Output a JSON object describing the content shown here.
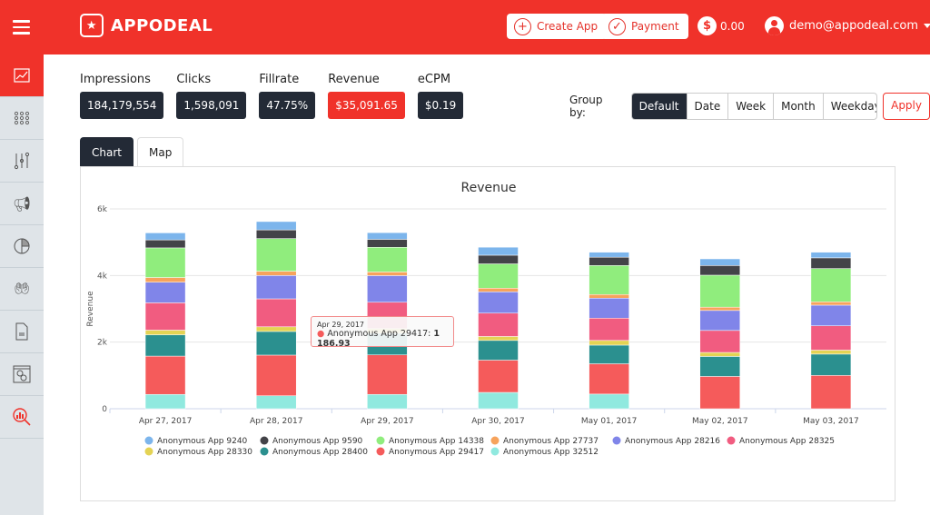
{
  "header": {
    "logo": "APPODEAL",
    "create_app": "Create App",
    "payment": "Payment",
    "balance": "0.00",
    "user": "demo@appodeal.com"
  },
  "sidebar": {
    "items": [
      {
        "icon": "line-chart-icon",
        "active": true
      },
      {
        "icon": "apps-grid-icon"
      },
      {
        "icon": "sliders-icon"
      },
      {
        "icon": "megaphone-icon"
      },
      {
        "icon": "pie-chart-icon"
      },
      {
        "icon": "hand-coins-icon"
      },
      {
        "icon": "document-icon"
      },
      {
        "icon": "settings-window-icon"
      },
      {
        "icon": "search-analytics-icon"
      }
    ]
  },
  "stats": [
    {
      "label": "Impressions",
      "value": "184,179,554"
    },
    {
      "label": "Clicks",
      "value": "1,598,091"
    },
    {
      "label": "Fillrate",
      "value": "47.75%"
    },
    {
      "label": "Revenue",
      "value": "$35,091.65"
    },
    {
      "label": "eCPM",
      "value": "$0.19"
    }
  ],
  "group_by": {
    "label": "Group by:",
    "options": [
      "Default",
      "Date",
      "Week",
      "Month",
      "Weekday"
    ],
    "selected": "Default",
    "apply": "Apply"
  },
  "tabs": [
    {
      "label": "Chart",
      "active": true
    },
    {
      "label": "Map"
    }
  ],
  "colors": {
    "brand": "#f0322a",
    "dark": "#232a36"
  },
  "tooltip": {
    "date": "Apr 29, 2017",
    "series": "Anonymous App 29417",
    "value": "1 186.93"
  },
  "chart_data": {
    "type": "bar",
    "stacked": true,
    "title": "Revenue",
    "ylabel": "Revenue",
    "xlabel": "",
    "ylim": [
      0,
      6000
    ],
    "yticks": [
      "0",
      "2k",
      "4k",
      "6k"
    ],
    "grid": true,
    "legend": "bottom",
    "categories": [
      "Apr 27, 2017",
      "Apr 28, 2017",
      "Apr 29, 2017",
      "Apr 30, 2017",
      "May 01, 2017",
      "May 02, 2017",
      "May 03, 2017"
    ],
    "series": [
      {
        "name": "Anonymous App 32512",
        "color": "#90e9df",
        "values": [
          430,
          390,
          430,
          490,
          440,
          0,
          0
        ]
      },
      {
        "name": "Anonymous App 29417",
        "color": "#f55b5b",
        "values": [
          1150,
          1220,
          1186.93,
          970,
          910,
          970,
          1000
        ]
      },
      {
        "name": "Anonymous App 28400",
        "color": "#2b908f",
        "values": [
          640,
          710,
          650,
          590,
          560,
          600,
          640
        ]
      },
      {
        "name": "Anonymous App 28330",
        "color": "#e4d354",
        "values": [
          140,
          140,
          140,
          120,
          140,
          120,
          120
        ]
      },
      {
        "name": "Anonymous App 28325",
        "color": "#f15c80",
        "values": [
          820,
          840,
          790,
          700,
          670,
          660,
          730
        ]
      },
      {
        "name": "Anonymous App 28216",
        "color": "#8085e9",
        "values": [
          620,
          700,
          800,
          640,
          600,
          600,
          620
        ]
      },
      {
        "name": "Anonymous App 27737",
        "color": "#f7a35c",
        "values": [
          140,
          130,
          110,
          110,
          110,
          100,
          100
        ]
      },
      {
        "name": "Anonymous App 14338",
        "color": "#90ed7d",
        "values": [
          890,
          980,
          740,
          730,
          870,
          960,
          1000
        ]
      },
      {
        "name": "Anonymous App 9590",
        "color": "#434348",
        "values": [
          240,
          260,
          240,
          260,
          250,
          290,
          320
        ]
      },
      {
        "name": "Anonymous App 9240",
        "color": "#7cb5ec",
        "values": [
          210,
          250,
          200,
          240,
          150,
          200,
          170
        ]
      }
    ],
    "legend_order": [
      "Anonymous App 9240",
      "Anonymous App 9590",
      "Anonymous App 14338",
      "Anonymous App 27737",
      "Anonymous App 28216",
      "Anonymous App 28325",
      "Anonymous App 28330",
      "Anonymous App 28400",
      "Anonymous App 29417",
      "Anonymous App 32512"
    ]
  }
}
